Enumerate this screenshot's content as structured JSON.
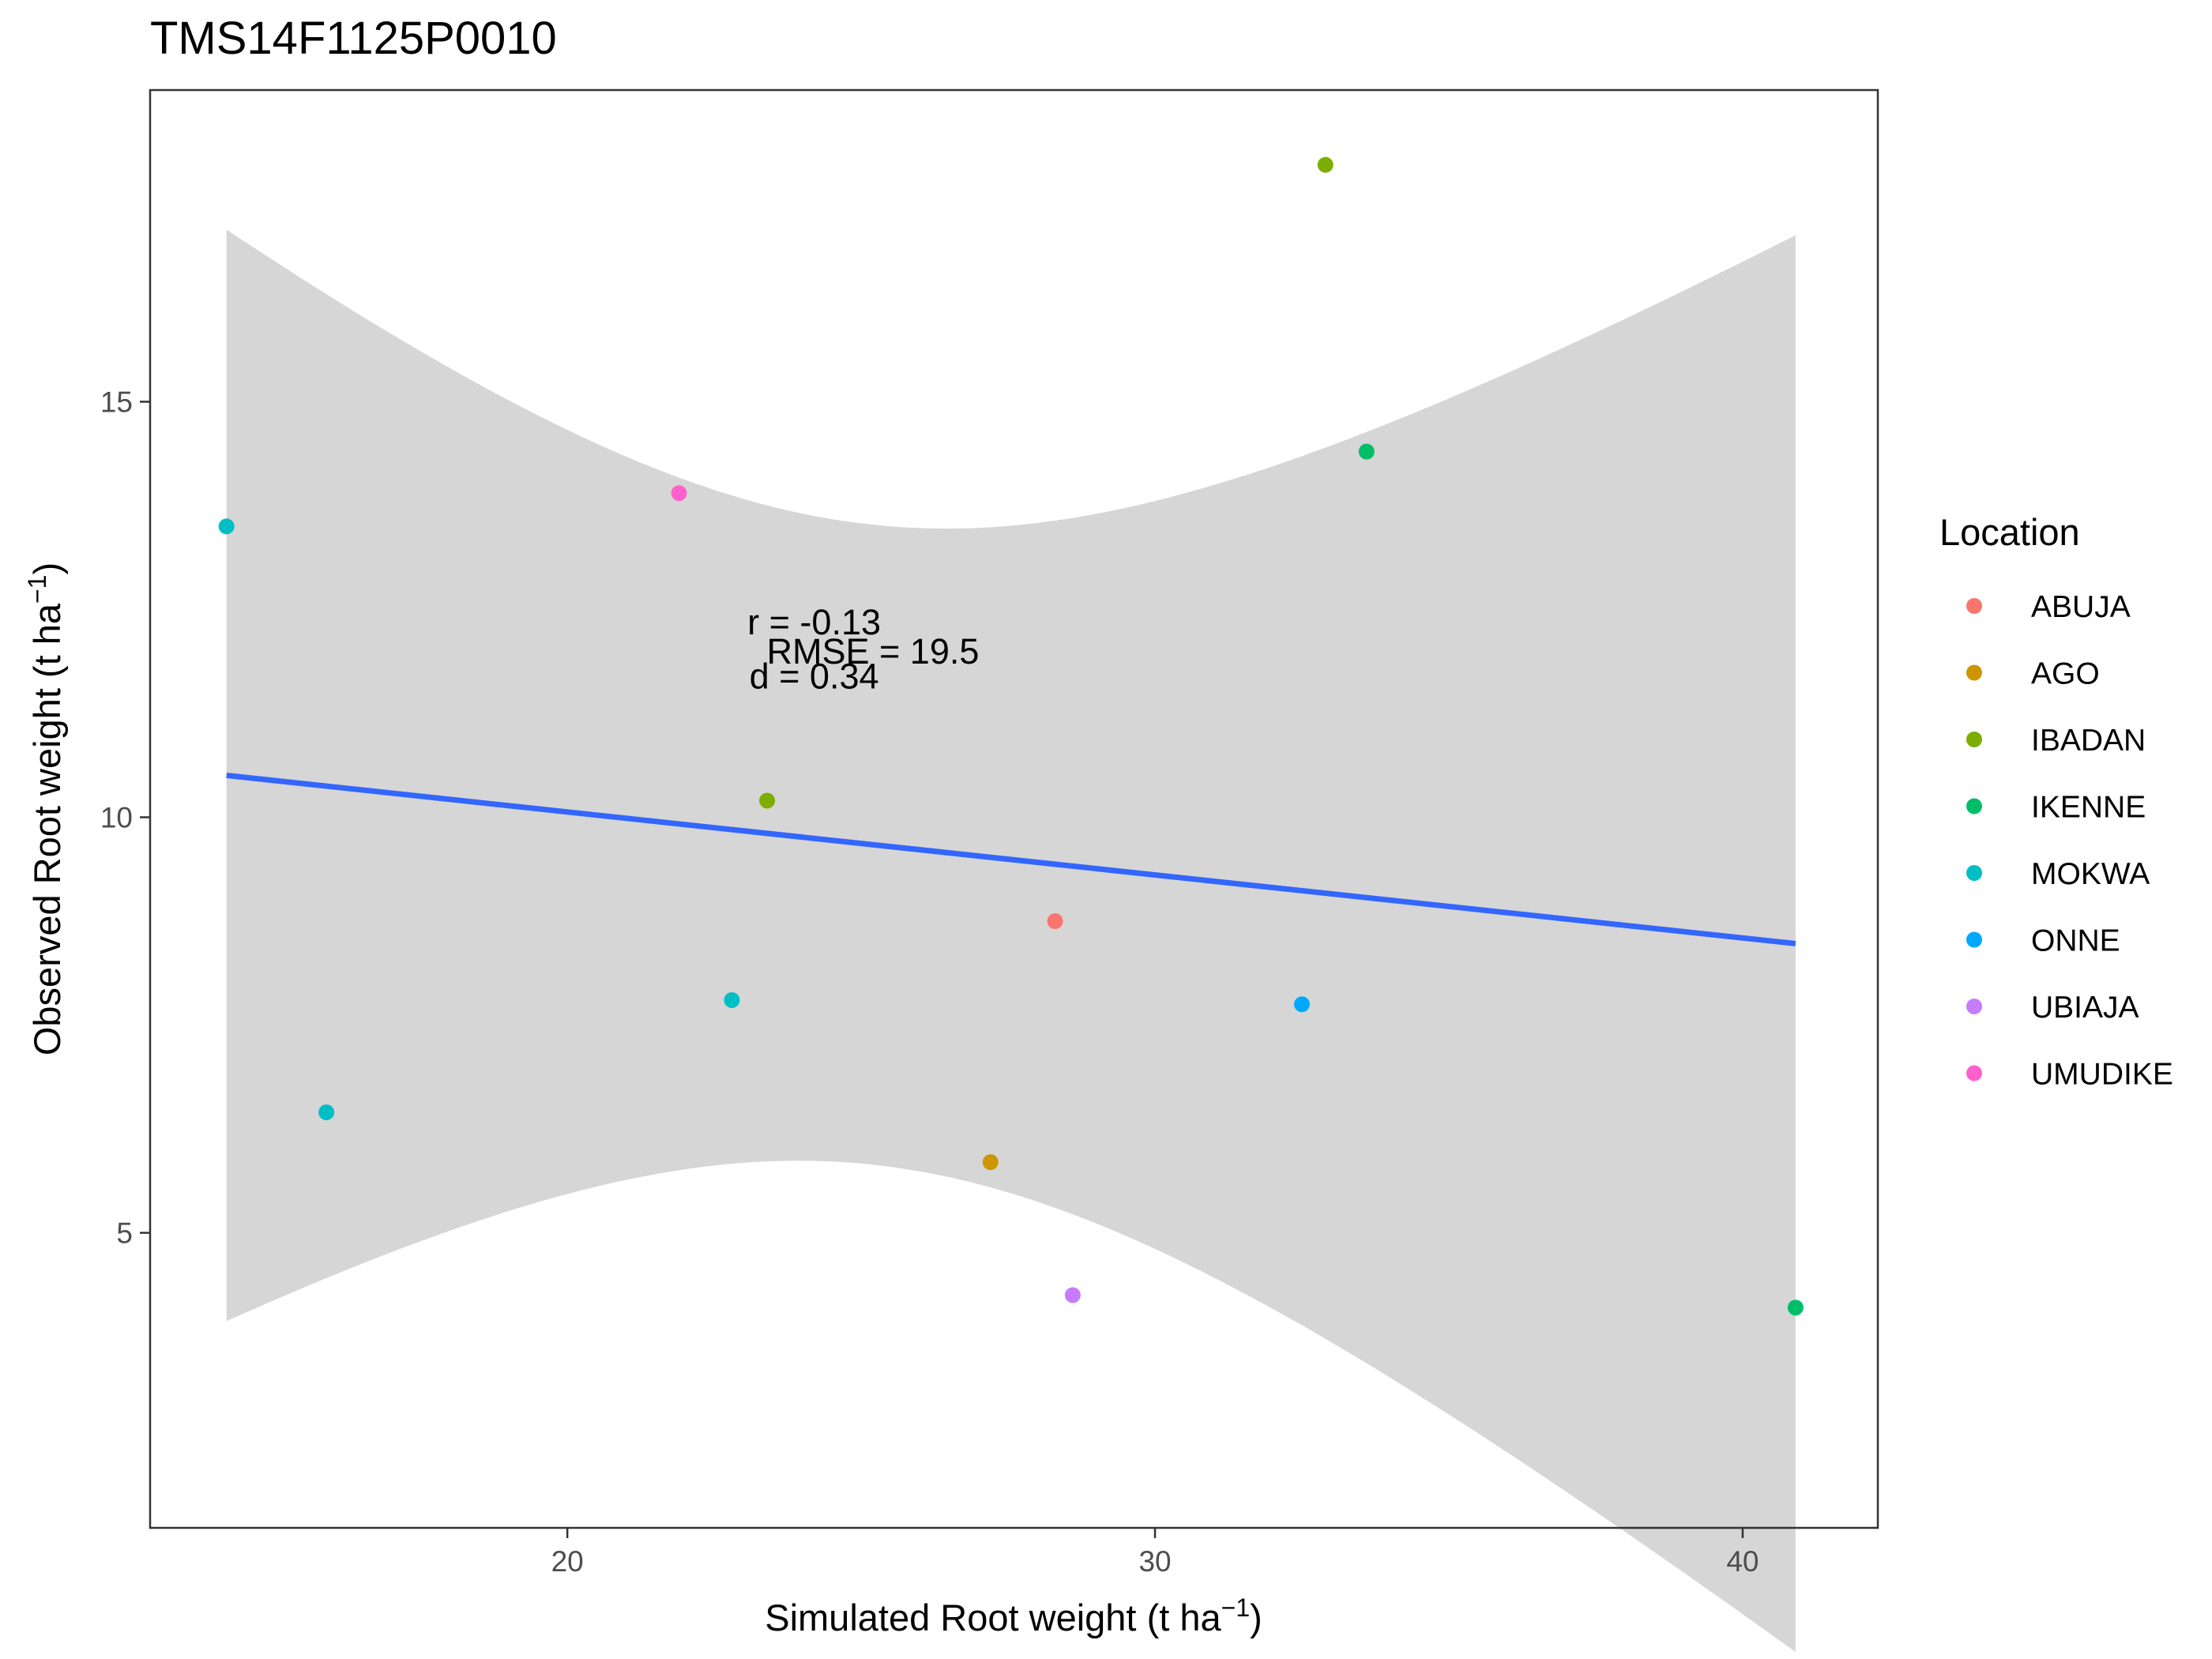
{
  "chart_data": {
    "type": "scatter",
    "title": "TMS14F1125P0010",
    "xlabel": {
      "main": "Simulated Root weight",
      "unit_pre": "t ha",
      "unit_sup": "−1"
    },
    "ylabel": {
      "main": "Observed Root weight",
      "unit_pre": "t ha",
      "unit_sup": "−1"
    },
    "xlim": [
      12.9,
      42.3
    ],
    "ylim": [
      1.45,
      18.75
    ],
    "xticks": [
      20,
      30,
      40
    ],
    "yticks": [
      5,
      10,
      15
    ],
    "grid": false,
    "legend": {
      "title": "Location",
      "placement": "right",
      "items": [
        {
          "name": "ABUJA",
          "color": "#F8766D"
        },
        {
          "name": "AGO",
          "color": "#CD9600"
        },
        {
          "name": "IBADAN",
          "color": "#7CAE00"
        },
        {
          "name": "IKENNE",
          "color": "#00BE67"
        },
        {
          "name": "MOKWA",
          "color": "#00BFC4"
        },
        {
          "name": "ONNE",
          "color": "#00A9FF"
        },
        {
          "name": "UBIAJA",
          "color": "#C77CFF"
        },
        {
          "name": "UMUDIKE",
          "color": "#FF61CC"
        }
      ]
    },
    "points": [
      {
        "location": "MOKWA",
        "x": 14.2,
        "y": 13.5
      },
      {
        "location": "MOKWA",
        "x": 15.9,
        "y": 6.45
      },
      {
        "location": "UMUDIKE",
        "x": 21.9,
        "y": 13.9
      },
      {
        "location": "MOKWA",
        "x": 22.8,
        "y": 7.8
      },
      {
        "location": "IBADAN",
        "x": 23.4,
        "y": 10.2
      },
      {
        "location": "AGO",
        "x": 27.2,
        "y": 5.85
      },
      {
        "location": "ABUJA",
        "x": 28.3,
        "y": 8.75
      },
      {
        "location": "UBIAJA",
        "x": 28.6,
        "y": 4.25
      },
      {
        "location": "ONNE",
        "x": 32.5,
        "y": 7.75
      },
      {
        "location": "IBADAN",
        "x": 32.9,
        "y": 17.85
      },
      {
        "location": "IKENNE",
        "x": 33.6,
        "y": 14.4
      },
      {
        "location": "IKENNE",
        "x": 40.9,
        "y": 4.1
      }
    ],
    "fit": {
      "method": "lm",
      "line_color": "#3366FF",
      "band_color": "#999999",
      "x_range": [
        14.2,
        40.9
      ],
      "intercept": 11.58,
      "slope": -0.0758,
      "se": {
        "x_mean": 25.19,
        "base": 1.75,
        "scale": 0.22
      }
    },
    "annotations": [
      {
        "text": "r = -0.13",
        "x": 24.2,
        "y": 12.2
      },
      {
        "text": "RMSE = 19.5",
        "x": 25.2,
        "y": 11.85
      },
      {
        "text": "d = 0.34",
        "x": 24.2,
        "y": 11.55
      }
    ]
  }
}
